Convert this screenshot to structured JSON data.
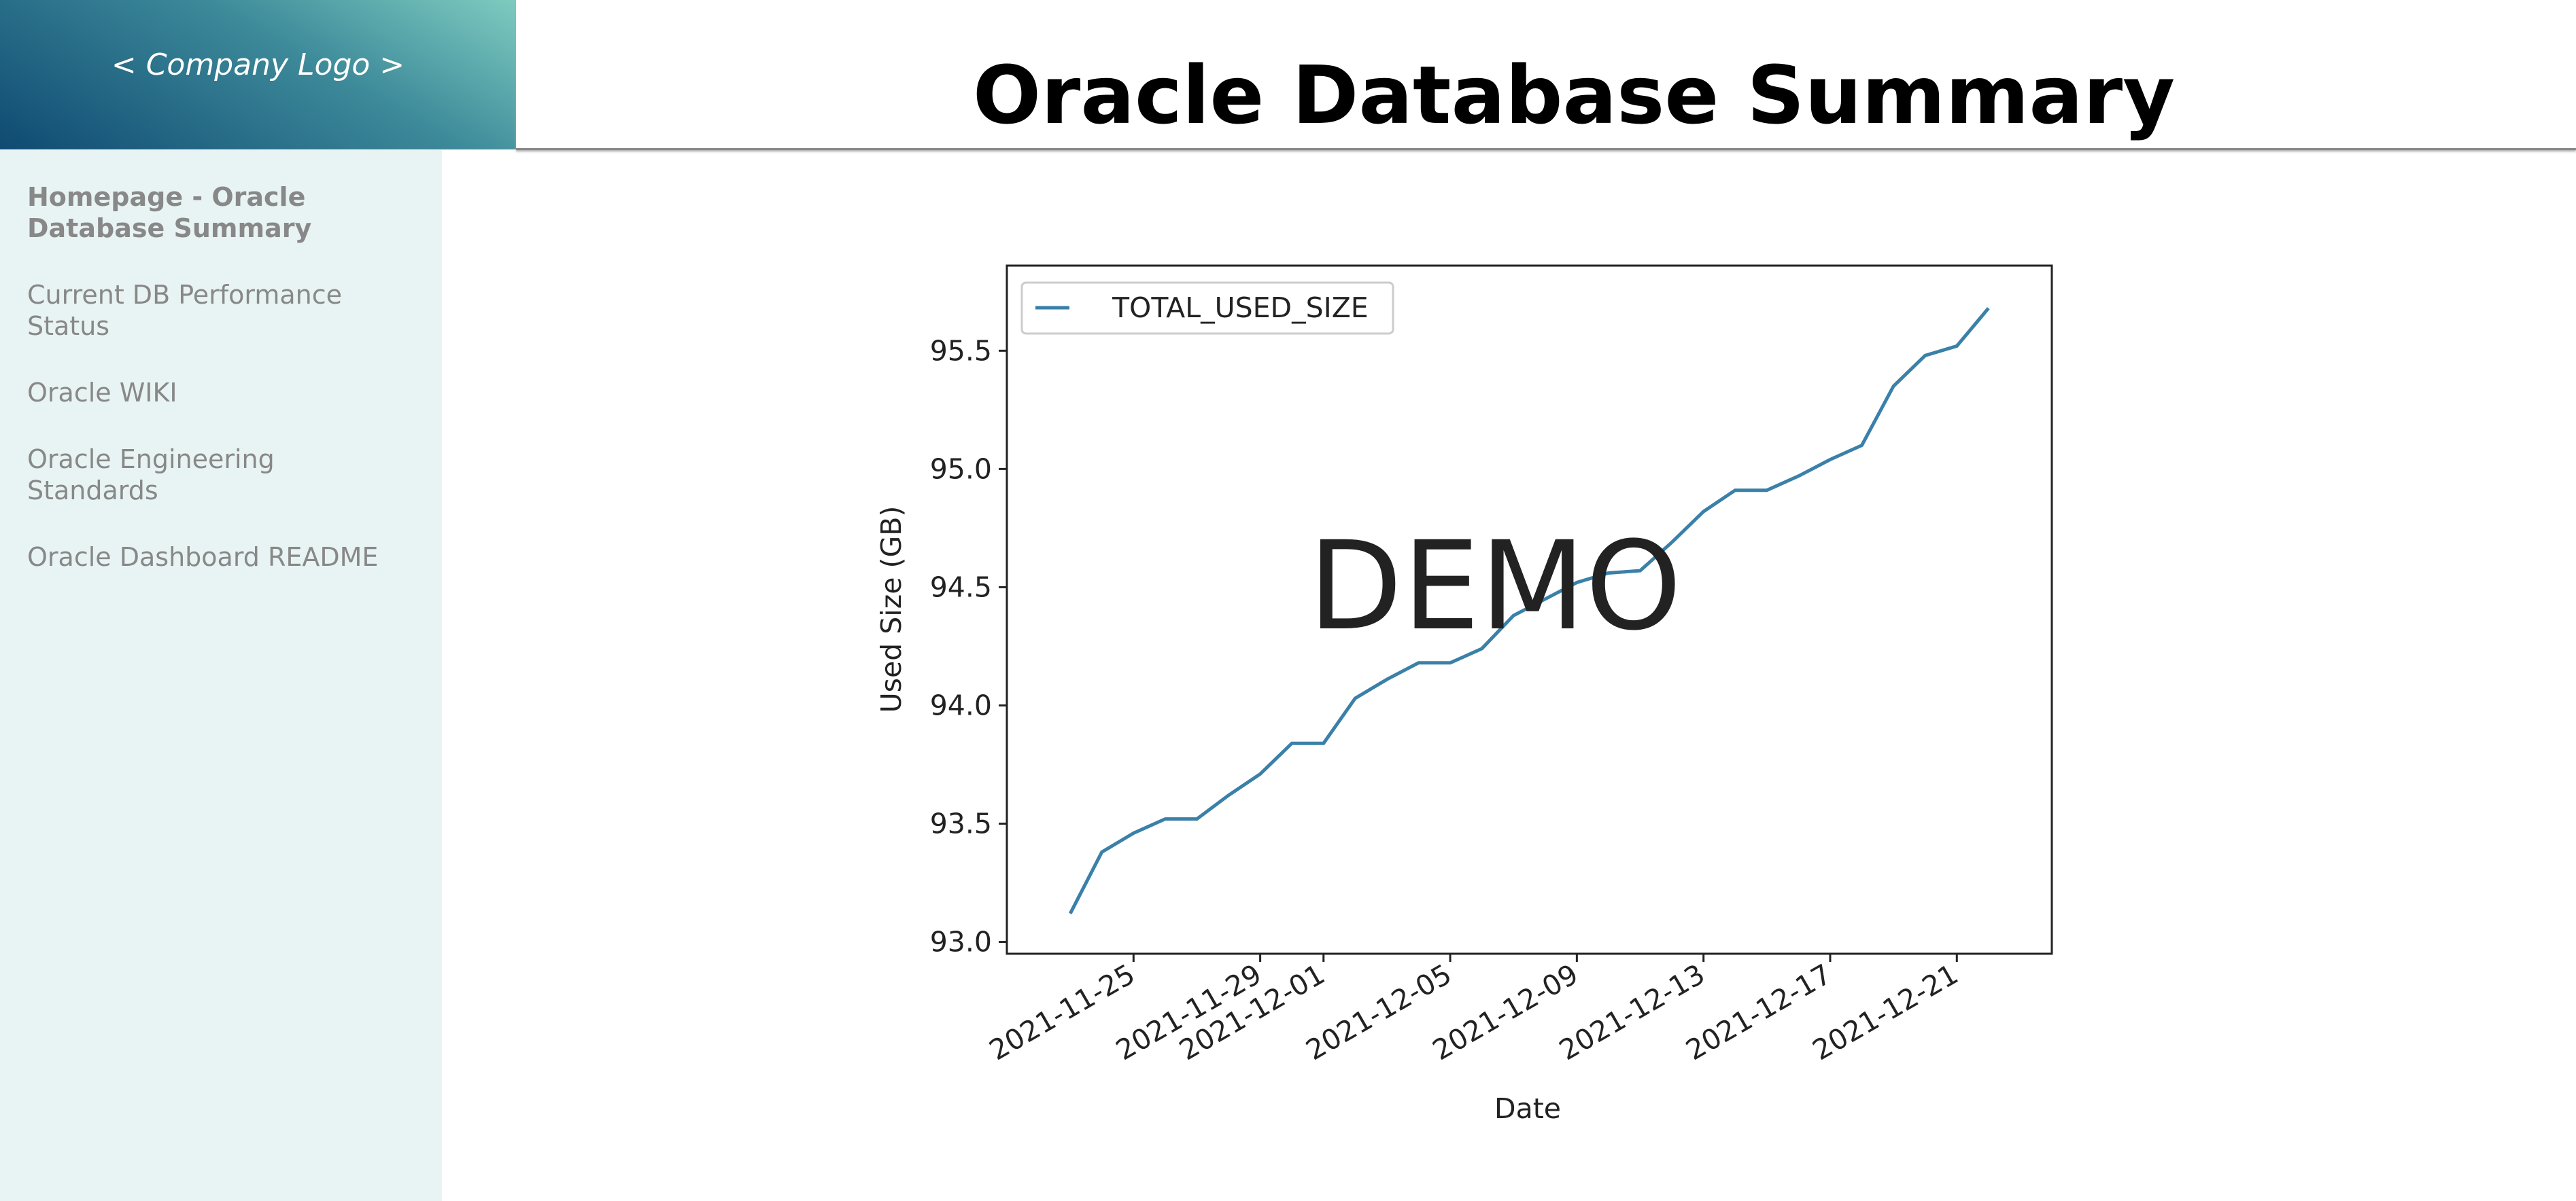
{
  "logo": "< Company Logo >",
  "header": {
    "title": "Oracle Database Summary"
  },
  "nav": {
    "items": [
      "Homepage - Oracle Database Summary",
      "Current DB Performance Status",
      "Oracle WIKI",
      "Oracle Engineering Standards",
      "Oracle Dashboard README"
    ]
  },
  "chart_data": {
    "type": "line",
    "x_label": "Date",
    "y_label": "Used Size (GB)",
    "watermark": "DEMO",
    "x": [
      "2021-11-23",
      "2021-11-24",
      "2021-11-25",
      "2021-11-26",
      "2021-11-27",
      "2021-11-28",
      "2021-11-29",
      "2021-11-30",
      "2021-12-01",
      "2021-12-02",
      "2021-12-03",
      "2021-12-04",
      "2021-12-05",
      "2021-12-06",
      "2021-12-07",
      "2021-12-08",
      "2021-12-09",
      "2021-12-10",
      "2021-12-11",
      "2021-12-12",
      "2021-12-13",
      "2021-12-14",
      "2021-12-15",
      "2021-12-16",
      "2021-12-17",
      "2021-12-18",
      "2021-12-19",
      "2021-12-20",
      "2021-12-21",
      "2021-12-22"
    ],
    "series": [
      {
        "name": "TOTAL_USED_SIZE",
        "color": "#3a80a8",
        "values": [
          93.12,
          93.38,
          93.46,
          93.52,
          93.52,
          93.62,
          93.71,
          93.84,
          93.84,
          94.03,
          94.11,
          94.18,
          94.18,
          94.24,
          94.38,
          94.45,
          94.52,
          94.56,
          94.57,
          94.69,
          94.82,
          94.91,
          94.91,
          94.97,
          95.04,
          95.1,
          95.35,
          95.48,
          95.52,
          95.68
        ]
      }
    ],
    "xlim": [
      "2021-11-21",
      "2021-12-24"
    ],
    "xticks": [
      "2021-11-25",
      "2021-11-29",
      "2021-12-01",
      "2021-12-05",
      "2021-12-09",
      "2021-12-13",
      "2021-12-17",
      "2021-12-21"
    ],
    "ylim": [
      92.95,
      95.86
    ],
    "yticks": [
      {
        "value": 93,
        "label": "93.0"
      },
      93.5,
      {
        "value": 94,
        "label": "94.0"
      },
      94.5,
      {
        "value": 95,
        "label": "95.0"
      },
      95.5
    ],
    "legend": "upper left"
  }
}
